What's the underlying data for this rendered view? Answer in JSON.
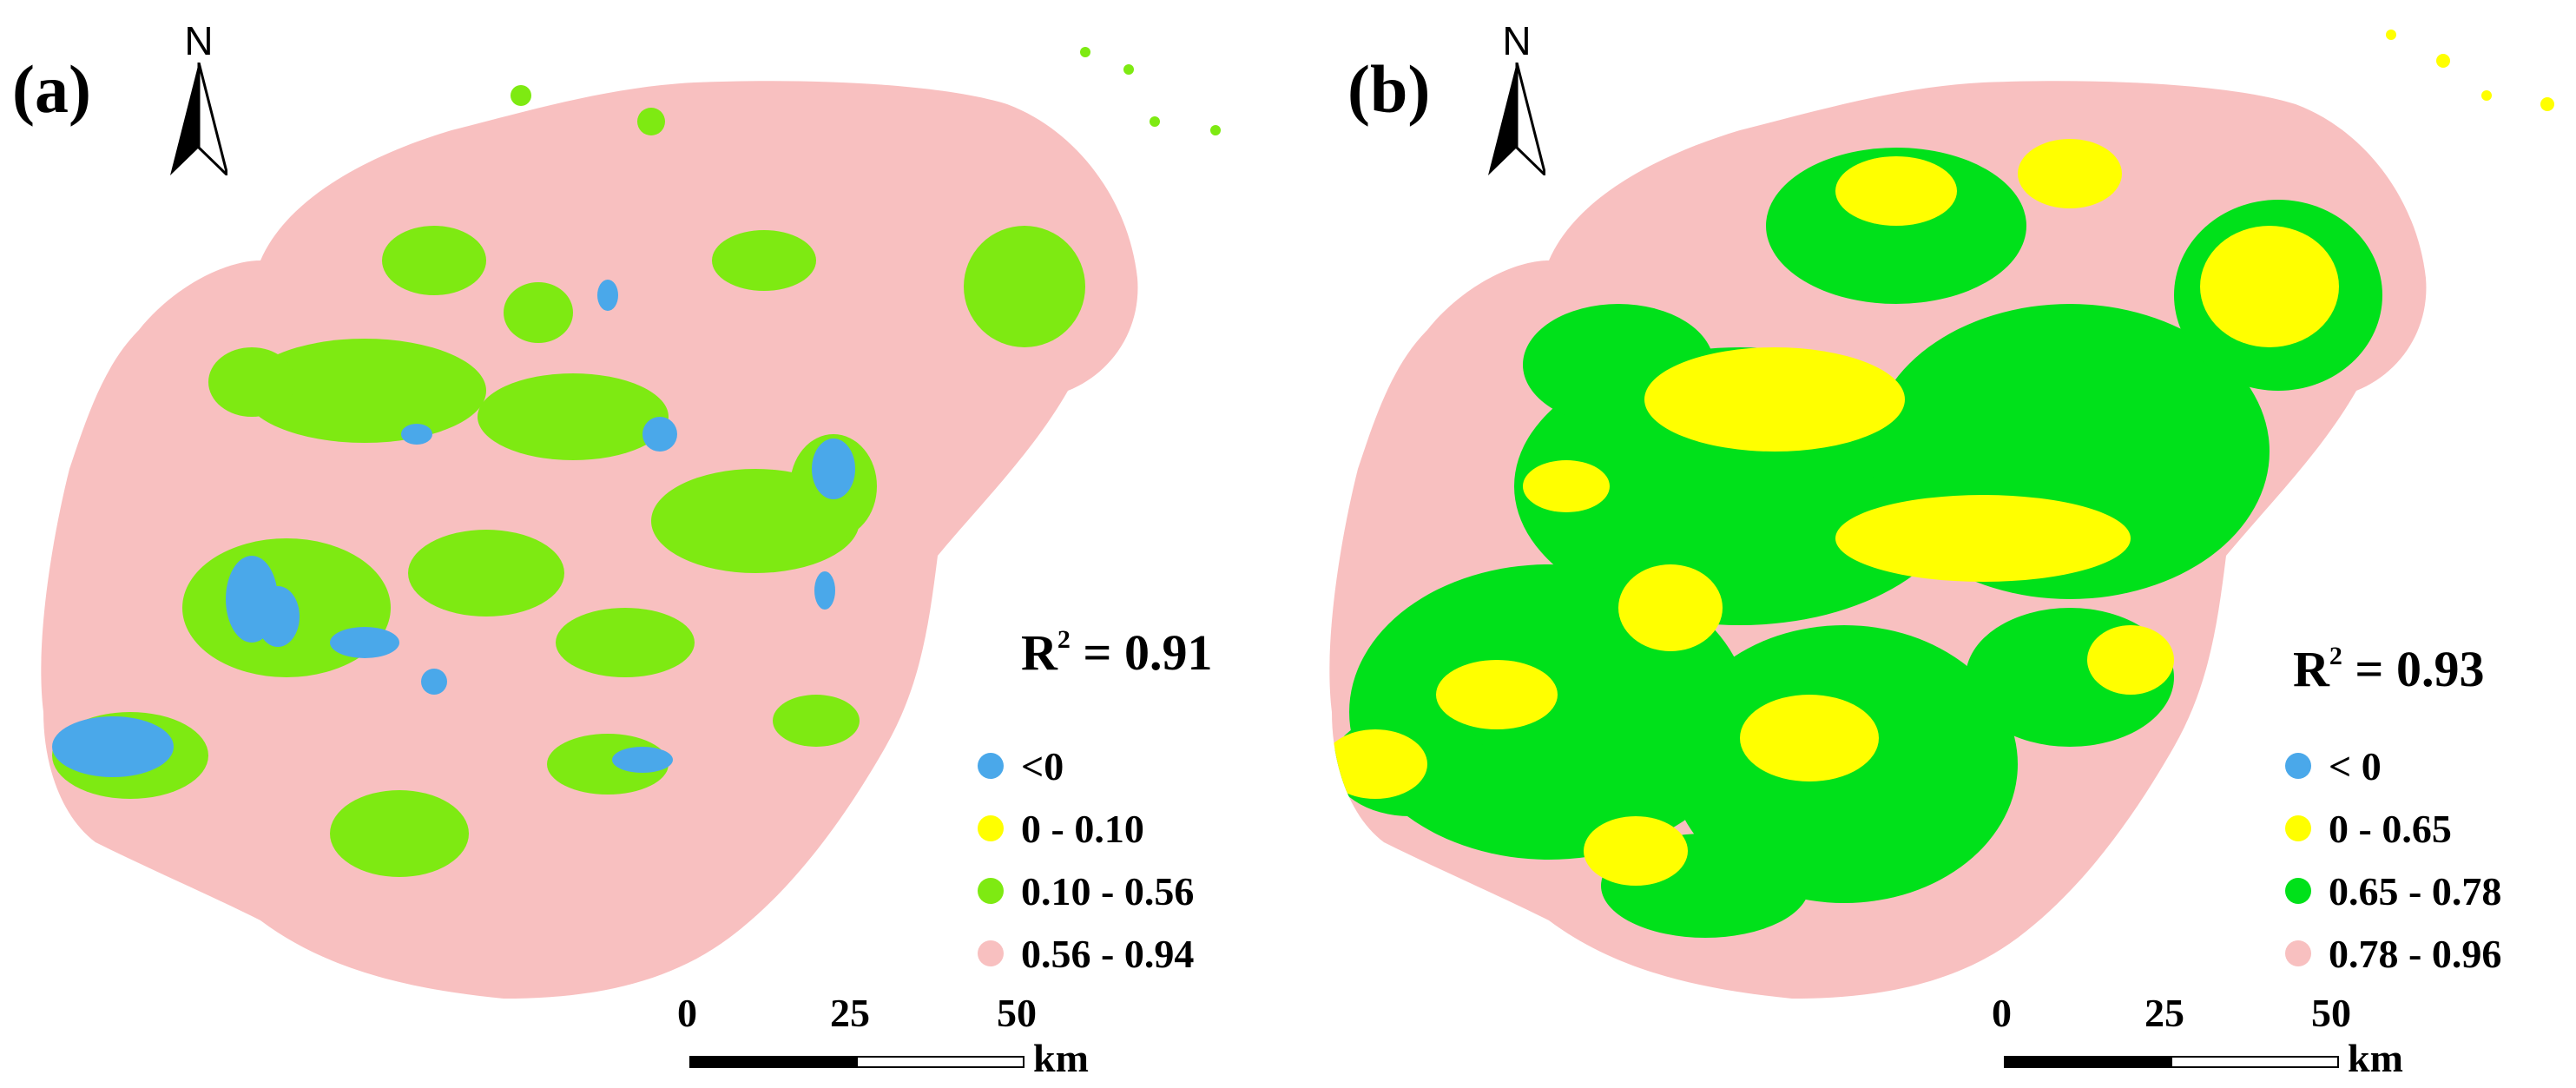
{
  "panels": [
    {
      "id": "a",
      "label": "(a)",
      "north": "N",
      "r2_label": "R",
      "r2_sup": "2",
      "r2_value": "= 0.91",
      "legend": [
        {
          "label": "<0",
          "color": "#4aa8ea"
        },
        {
          "label": "0 - 0.10",
          "color": "#ffff00"
        },
        {
          "label": "0.10 - 0.56",
          "color": "#7eea12"
        },
        {
          "label": "0.56 - 0.94",
          "color": "#f8c0c0"
        }
      ],
      "map_colors": {
        "base": "#f8c0c0",
        "mid": "#7eea12",
        "low": "#4aa8ea"
      },
      "scalebar": {
        "ticks": [
          "0",
          "25",
          "50"
        ],
        "unit": "km"
      }
    },
    {
      "id": "b",
      "label": "(b)",
      "north": "N",
      "r2_label": "R",
      "r2_sup": "2",
      "r2_value": "= 0.93",
      "legend": [
        {
          "label": "< 0",
          "color": "#4aa8ea"
        },
        {
          "label": "0 - 0.65",
          "color": "#ffff00"
        },
        {
          "label": "0.65 - 0.78",
          "color": "#00e11a"
        },
        {
          "label": "0.78 - 0.96",
          "color": "#f8c0c0"
        }
      ],
      "map_colors": {
        "base": "#f8c0c0",
        "mid": "#00e11a",
        "low": "#ffff00"
      },
      "scalebar": {
        "ticks": [
          "0",
          "25",
          "50"
        ],
        "unit": "km"
      }
    }
  ]
}
